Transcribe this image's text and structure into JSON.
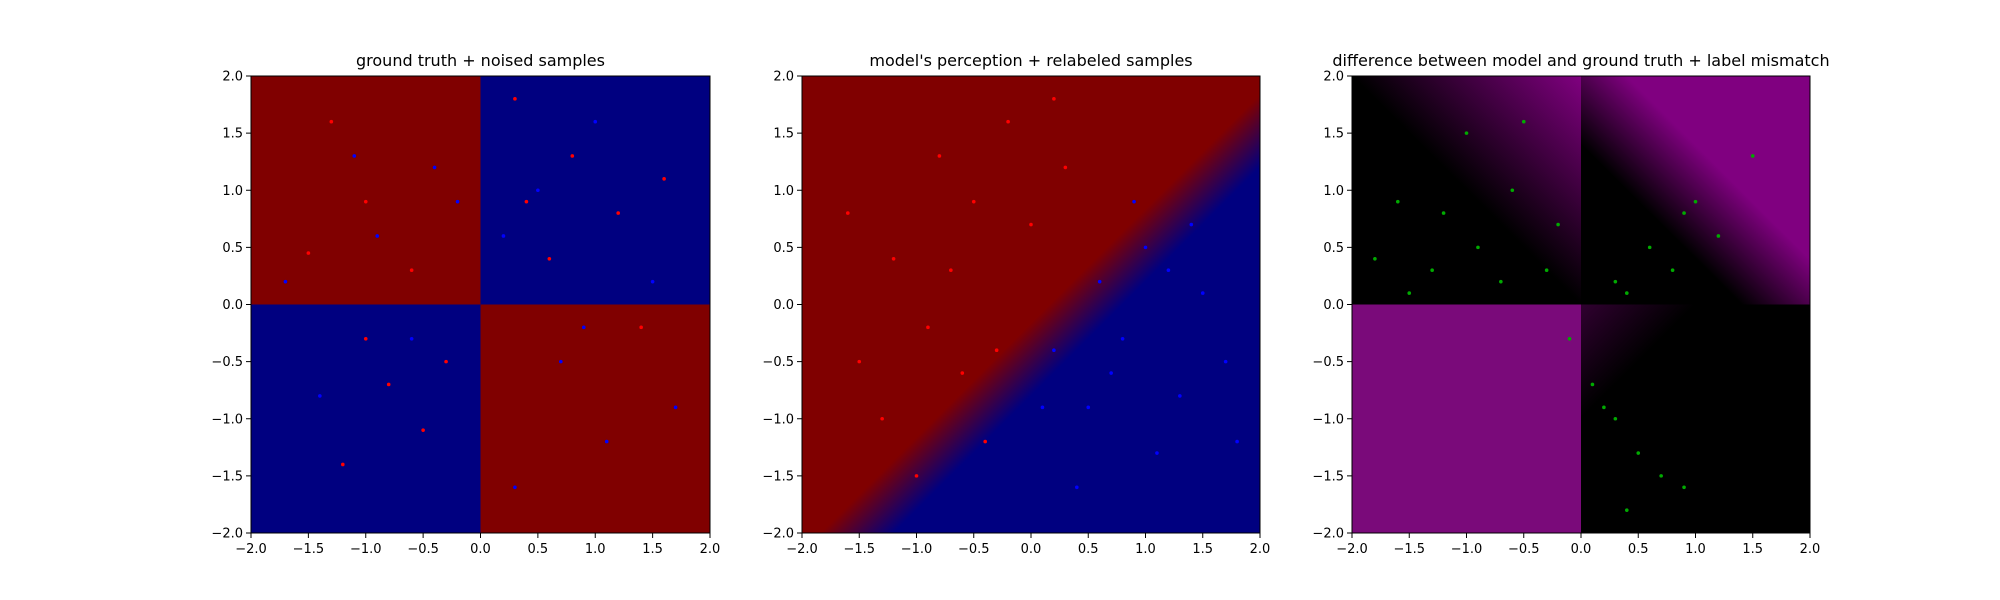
{
  "chart_data": [
    {
      "type": "scatter",
      "title": "ground truth + noised samples",
      "xlim": [
        -2.0,
        2.0
      ],
      "ylim": [
        -2.0,
        2.0
      ],
      "xticks": [
        "-2.0",
        "-1.5",
        "-1.0",
        "-0.5",
        "0.0",
        "0.5",
        "1.0",
        "1.5",
        "2.0"
      ],
      "yticks": [
        "-2.0",
        "-1.5",
        "-1.0",
        "-0.5",
        "0.0",
        "0.5",
        "1.0",
        "1.5",
        "2.0"
      ],
      "background": {
        "kind": "quadrants",
        "colors": {
          "top_left": "#800000",
          "top_right": "#000080",
          "bottom_left": "#000080",
          "bottom_right": "#800000"
        },
        "split": [
          0.0,
          0.0
        ]
      },
      "series": [
        {
          "color": "#ff0000",
          "points": [
            [
              -1.5,
              0.45
            ],
            [
              -1.0,
              0.9
            ],
            [
              -0.6,
              0.3
            ],
            [
              -1.3,
              1.6
            ],
            [
              0.3,
              1.8
            ],
            [
              0.6,
              0.4
            ],
            [
              1.2,
              0.8
            ],
            [
              0.8,
              1.3
            ],
            [
              -0.3,
              -0.5
            ],
            [
              -0.8,
              -0.7
            ],
            [
              -1.2,
              -1.4
            ],
            [
              -0.5,
              -1.1
            ],
            [
              1.4,
              -0.2
            ],
            [
              -1.0,
              -0.3
            ],
            [
              0.4,
              0.9
            ],
            [
              1.6,
              1.1
            ]
          ]
        },
        {
          "color": "#0000ff",
          "points": [
            [
              -0.9,
              0.6
            ],
            [
              -0.4,
              1.2
            ],
            [
              -1.7,
              0.2
            ],
            [
              0.5,
              1.0
            ],
            [
              1.0,
              1.6
            ],
            [
              0.2,
              0.6
            ],
            [
              1.5,
              0.2
            ],
            [
              0.7,
              -0.5
            ],
            [
              1.1,
              -1.2
            ],
            [
              0.3,
              -1.6
            ],
            [
              -0.6,
              -0.3
            ],
            [
              -1.4,
              -0.8
            ],
            [
              1.7,
              -0.9
            ],
            [
              -0.2,
              0.9
            ],
            [
              0.9,
              -0.2
            ],
            [
              -1.1,
              1.3
            ]
          ]
        }
      ]
    },
    {
      "type": "scatter",
      "title": "model's perception + relabeled samples",
      "xlim": [
        -2.0,
        2.0
      ],
      "ylim": [
        -2.0,
        2.0
      ],
      "xticks": [
        "-2.0",
        "-1.5",
        "-1.0",
        "-0.5",
        "0.0",
        "0.5",
        "1.0",
        "1.5",
        "2.0"
      ],
      "yticks": [
        "-2.0",
        "-1.5",
        "-1.0",
        "-0.5",
        "0.0",
        "0.5",
        "1.0",
        "1.5",
        "2.0"
      ],
      "background": {
        "kind": "diagonal-blend",
        "colors": {
          "positive": "#800000",
          "negative": "#000080"
        }
      },
      "series": [
        {
          "color": "#ff0000",
          "points": [
            [
              -0.5,
              0.9
            ],
            [
              -0.8,
              1.3
            ],
            [
              -0.2,
              1.6
            ],
            [
              0.3,
              1.2
            ],
            [
              -1.2,
              0.4
            ],
            [
              -0.9,
              -0.2
            ],
            [
              -0.6,
              -0.6
            ],
            [
              -1.3,
              -1.0
            ],
            [
              -1.0,
              -1.5
            ],
            [
              -0.3,
              -0.4
            ],
            [
              0.0,
              0.7
            ],
            [
              -1.6,
              0.8
            ],
            [
              0.2,
              1.8
            ],
            [
              -0.7,
              0.3
            ],
            [
              -1.5,
              -0.5
            ],
            [
              -0.4,
              -1.2
            ]
          ]
        },
        {
          "color": "#0000ff",
          "points": [
            [
              0.6,
              0.2
            ],
            [
              1.0,
              0.5
            ],
            [
              0.8,
              -0.3
            ],
            [
              1.3,
              -0.8
            ],
            [
              0.5,
              -0.9
            ],
            [
              1.5,
              0.1
            ],
            [
              0.2,
              -0.4
            ],
            [
              1.1,
              -1.3
            ],
            [
              1.7,
              -0.5
            ],
            [
              0.9,
              0.9
            ],
            [
              0.4,
              -1.6
            ],
            [
              1.4,
              0.7
            ],
            [
              0.1,
              -0.9
            ],
            [
              1.8,
              -1.2
            ],
            [
              0.7,
              -0.6
            ],
            [
              1.2,
              0.3
            ]
          ]
        }
      ]
    },
    {
      "type": "scatter",
      "title": "difference between model and ground truth + label mismatch",
      "xlim": [
        -2.0,
        2.0
      ],
      "ylim": [
        -2.0,
        2.0
      ],
      "xticks": [
        "-2.0",
        "-1.5",
        "-1.0",
        "-0.5",
        "0.0",
        "0.5",
        "1.0",
        "1.5",
        "2.0"
      ],
      "yticks": [
        "-2.0",
        "-1.5",
        "-1.0",
        "-0.5",
        "0.0",
        "0.5",
        "1.0",
        "1.5",
        "2.0"
      ],
      "background": {
        "kind": "difference",
        "colors": {
          "mismatch": "#800080",
          "match": "#000000"
        }
      },
      "series": [
        {
          "color": "#00aa00",
          "points": [
            [
              -1.8,
              0.4
            ],
            [
              -1.5,
              0.1
            ],
            [
              -1.2,
              0.8
            ],
            [
              -0.9,
              0.5
            ],
            [
              -0.6,
              1.0
            ],
            [
              -0.3,
              0.3
            ],
            [
              -1.0,
              1.5
            ],
            [
              -0.5,
              1.6
            ],
            [
              -1.6,
              0.9
            ],
            [
              -0.2,
              0.7
            ],
            [
              0.3,
              0.2
            ],
            [
              0.6,
              0.5
            ],
            [
              0.9,
              0.8
            ],
            [
              1.2,
              0.6
            ],
            [
              0.8,
              0.3
            ],
            [
              1.5,
              1.3
            ],
            [
              0.4,
              0.1
            ],
            [
              1.0,
              0.9
            ],
            [
              0.1,
              -0.7
            ],
            [
              0.3,
              -1.0
            ],
            [
              0.5,
              -1.3
            ],
            [
              0.7,
              -1.5
            ],
            [
              0.2,
              -0.9
            ],
            [
              0.9,
              -1.6
            ],
            [
              0.4,
              -1.8
            ],
            [
              -0.1,
              -0.3
            ],
            [
              -0.7,
              0.2
            ],
            [
              -1.3,
              0.3
            ]
          ]
        }
      ]
    }
  ]
}
